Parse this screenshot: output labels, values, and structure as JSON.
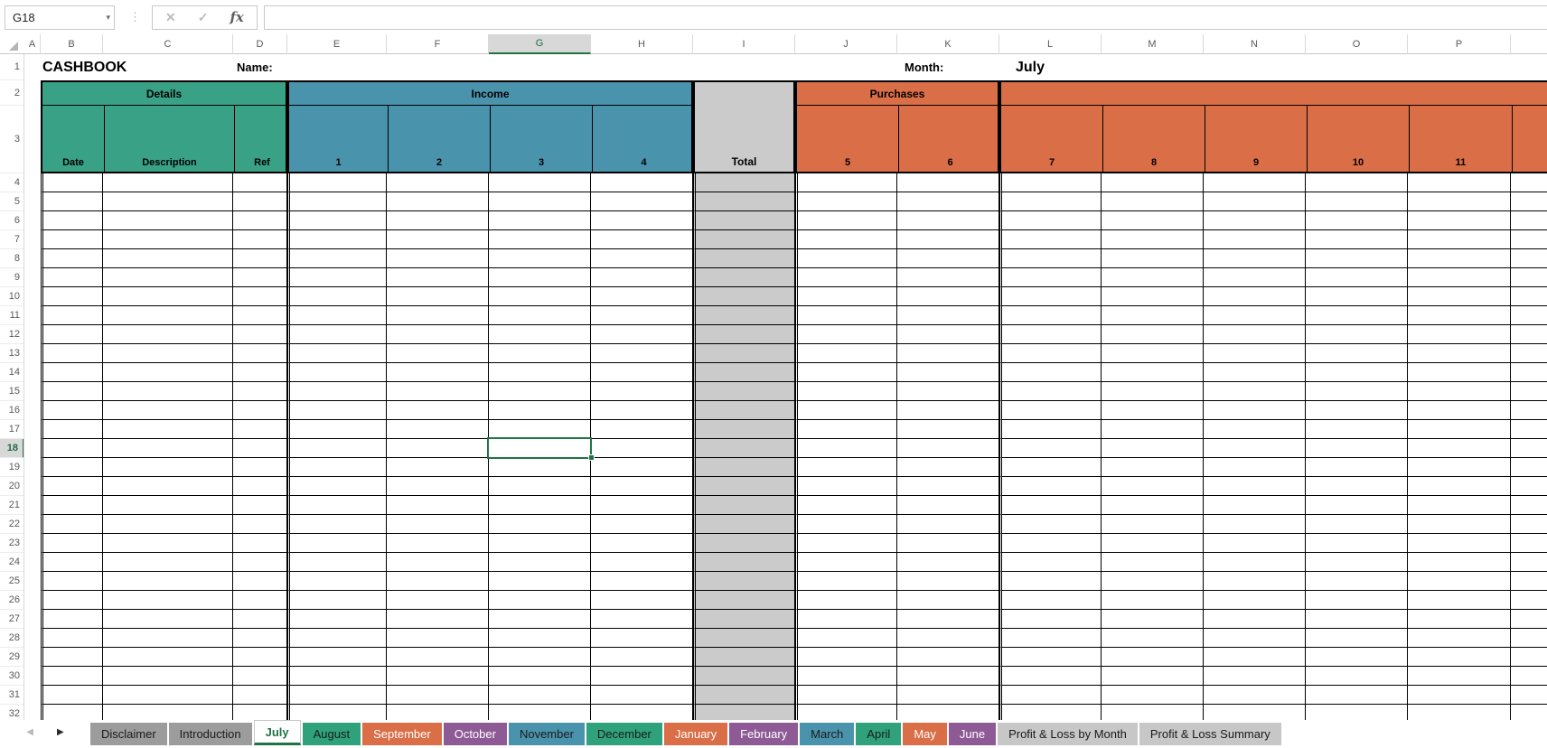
{
  "toolbar": {
    "name_box_value": "G18",
    "formula_value": "",
    "dropdown_icon": "▾",
    "more_icon": "⋮",
    "cancel_icon": "✕",
    "enter_icon": "✓",
    "fx_icon": "fx"
  },
  "column_headers": [
    "A",
    "B",
    "C",
    "D",
    "E",
    "F",
    "G",
    "H",
    "I",
    "J",
    "K",
    "L",
    "M",
    "N",
    "O",
    "P"
  ],
  "row_headers": [
    "1",
    "2",
    "3",
    "4",
    "5",
    "6",
    "7",
    "8",
    "9",
    "10",
    "11",
    "12",
    "13",
    "14",
    "15",
    "16",
    "17",
    "18",
    "19",
    "20",
    "21",
    "22",
    "23",
    "24",
    "25",
    "26",
    "27",
    "28",
    "29",
    "30",
    "31",
    "32"
  ],
  "selection": {
    "cell": "G18",
    "column": "G",
    "row": "18"
  },
  "title_row": {
    "title": "CASHBOOK",
    "name_label": "Name:",
    "month_label": "Month:",
    "month_value": "July"
  },
  "table_header": {
    "sections": [
      {
        "id": "details",
        "label": "Details",
        "bg": "#39A185",
        "sub": [
          {
            "col": "B",
            "label": "Date"
          },
          {
            "col": "C",
            "label": "Description"
          },
          {
            "col": "D",
            "label": "Ref"
          }
        ]
      },
      {
        "id": "income",
        "label": "Income",
        "bg": "#4A93AC",
        "sub": [
          {
            "col": "E",
            "label": "1"
          },
          {
            "col": "F",
            "label": "2"
          },
          {
            "col": "G",
            "label": "3"
          },
          {
            "col": "H",
            "label": "4"
          }
        ]
      },
      {
        "id": "total",
        "label": "Total",
        "bg": "#CBCBCB",
        "merged": true,
        "col": "I"
      },
      {
        "id": "purchases",
        "label": "Purchases",
        "bg": "#D96E47",
        "sub": [
          {
            "col": "J",
            "label": "5"
          },
          {
            "col": "K",
            "label": "6"
          }
        ]
      },
      {
        "id": "purchases-cont",
        "label": "",
        "bg": "#D96E47",
        "clipped": true,
        "sub": [
          {
            "col": "L",
            "label": "7"
          },
          {
            "col": "M",
            "label": "8"
          },
          {
            "col": "N",
            "label": "9"
          },
          {
            "col": "O",
            "label": "10"
          },
          {
            "col": "P",
            "label": "11"
          },
          {
            "col": "Q",
            "label": ""
          }
        ]
      }
    ]
  },
  "sheet_tabs": {
    "nav_left_icon": "◀",
    "nav_right_icon": "▶",
    "tabs": [
      {
        "label": "Disclaimer",
        "bg": "#9C9C9C",
        "fg": "#1a1a1a",
        "active": false
      },
      {
        "label": "Introduction",
        "bg": "#9C9C9C",
        "fg": "#1a1a1a",
        "active": false
      },
      {
        "label": "July",
        "bg": "#FFFFFF",
        "fg": "#217346",
        "active": true
      },
      {
        "label": "August",
        "bg": "#2FA27C",
        "fg": "#1a1a1a",
        "active": false
      },
      {
        "label": "September",
        "bg": "#D96E47",
        "fg": "#FFFFFF",
        "active": false
      },
      {
        "label": "October",
        "bg": "#8E5A96",
        "fg": "#FFFFFF",
        "active": false
      },
      {
        "label": "November",
        "bg": "#4A93AC",
        "fg": "#1a1a1a",
        "active": false
      },
      {
        "label": "December",
        "bg": "#2FA27C",
        "fg": "#1a1a1a",
        "active": false
      },
      {
        "label": "January",
        "bg": "#D96E47",
        "fg": "#FFFFFF",
        "active": false
      },
      {
        "label": "February",
        "bg": "#8E5A96",
        "fg": "#FFFFFF",
        "active": false
      },
      {
        "label": "March",
        "bg": "#4A93AC",
        "fg": "#1a1a1a",
        "active": false
      },
      {
        "label": "April",
        "bg": "#2FA27C",
        "fg": "#1a1a1a",
        "active": false
      },
      {
        "label": "May",
        "bg": "#D96E47",
        "fg": "#FFFFFF",
        "active": false
      },
      {
        "label": "June",
        "bg": "#8E5A96",
        "fg": "#FFFFFF",
        "active": false
      },
      {
        "label": "Profit & Loss by Month",
        "bg": "#C7C7C7",
        "fg": "#1a1a1a",
        "active": false
      },
      {
        "label": "Profit & Loss Summary",
        "bg": "#C7C7C7",
        "fg": "#1a1a1a",
        "active": false
      }
    ]
  },
  "colors": {
    "selection_green": "#217346",
    "grid_border": "#000000",
    "total_gray": "#CBCBCB",
    "details_green": "#39A185",
    "income_blue": "#4A93AC",
    "purchases_orange": "#D96E47"
  }
}
